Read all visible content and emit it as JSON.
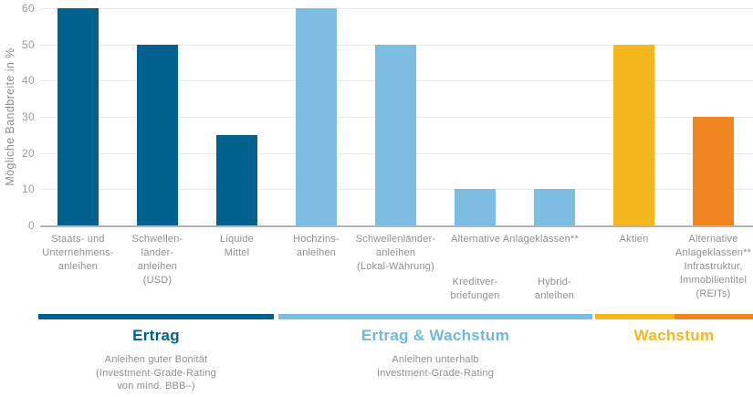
{
  "chart_data": {
    "type": "bar",
    "title": "",
    "ylabel": "Mögliche Bandbreite in %",
    "xlabel": "",
    "ylim": [
      0,
      60
    ],
    "yticks": [
      0,
      10,
      20,
      30,
      40,
      50,
      60
    ],
    "grid": true,
    "legend": "none",
    "bars": [
      {
        "label": "Staats- und\nUnternehmens-\nanleihen",
        "value": 60,
        "color_key": "darkblue"
      },
      {
        "label": "Schwellen-\nländer-\nanleihen\n(USD)",
        "value": 50,
        "color_key": "darkblue"
      },
      {
        "label": "Liquide\nMittel",
        "value": 25,
        "color_key": "darkblue"
      },
      {
        "label": "Hochzins-\nanleihen",
        "value": 60,
        "color_key": "lightblue"
      },
      {
        "label": "Schwellenländer-\nanleihen\n(Lokal-Währung)",
        "value": 50,
        "color_key": "lightblue"
      },
      {
        "label": "Kreditver-\nbriefungen",
        "value": 10,
        "color_key": "lightblue",
        "label_row": 2
      },
      {
        "label": "Hybrid-\nanleihen",
        "value": 10,
        "color_key": "lightblue",
        "label_row": 2
      },
      {
        "label": "Aktien",
        "value": 50,
        "color_key": "yellow"
      },
      {
        "label": "Alternative\nAnlageklassen**\nInfrastruktur,\nImmobilientitel\n(REITs)",
        "value": 30,
        "color_key": "orange"
      }
    ],
    "span_label": {
      "text": "Alternative Anlageklassen**",
      "from_bar": 5,
      "to_bar": 6
    },
    "colors": {
      "darkblue": "#00618f",
      "lightblue": "#7dbde4",
      "yellow": "#f4b71d",
      "orange": "#f18621",
      "label_gray": "#8f8f8f",
      "grid": "#e9e9e9",
      "axis": "#b4b4b4"
    },
    "groups": [
      {
        "title": "Ertrag",
        "subtitle": "Anleihen guter Bonität\n(Investment-Grade-Rating\nvon mind. BBB–)",
        "title_color": "#00618f",
        "segment_colors": [
          "#00618f"
        ]
      },
      {
        "title": "Ertrag & Wachstum",
        "subtitle": "Anleihen unterhalb\nInvestment-Grade-Rating",
        "title_color": "#6fb7e0",
        "segment_colors": [
          "#7dbde4"
        ]
      },
      {
        "title": "Wachstum",
        "subtitle": "",
        "title_color": "#f4b71d",
        "segment_colors": [
          "#f4b71d",
          "#f18621"
        ]
      }
    ]
  }
}
